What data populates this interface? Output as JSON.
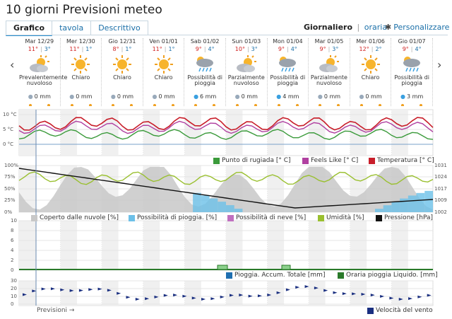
{
  "title": "10 giorni Previsioni meteo",
  "tabs": [
    {
      "label": "Grafico"
    },
    {
      "label": "tavola"
    },
    {
      "label": "Descrittivo"
    }
  ],
  "mode": {
    "current": "Giornaliero",
    "separator": "|",
    "alternative": "oraria"
  },
  "customize_label": "Personalizzare",
  "nav": {
    "prev": "‹",
    "next": "›"
  },
  "days": [
    {
      "name": "Mar 12/29",
      "max": "11°",
      "min": "3°",
      "icon": "partly-cloudy-icon",
      "condition": "Prevalentemente nuvoloso",
      "precip": "0 mm",
      "rain": false
    },
    {
      "name": "Mer 12/30",
      "max": "11°",
      "min": "1°",
      "icon": "sun-icon",
      "condition": "Chiaro",
      "precip": "0 mm",
      "rain": false
    },
    {
      "name": "Gio 12/31",
      "max": "8°",
      "min": "1°",
      "icon": "sun-icon",
      "condition": "Chiaro",
      "precip": "0 mm",
      "rain": false
    },
    {
      "name": "Ven 01/01",
      "max": "11°",
      "min": "1°",
      "icon": "sun-icon",
      "condition": "Chiaro",
      "precip": "0 mm",
      "rain": false
    },
    {
      "name": "Sab 01/02",
      "max": "9°",
      "min": "4°",
      "icon": "rain-cloud-icon",
      "condition": "Possibilità di pioggia",
      "precip": "6 mm",
      "rain": true
    },
    {
      "name": "Sun 01/03",
      "max": "10°",
      "min": "3°",
      "icon": "partly-cloudy-icon",
      "condition": "Parzialmente nuvoloso",
      "precip": "0 mm",
      "rain": false
    },
    {
      "name": "Mon 01/04",
      "max": "9°",
      "min": "4°",
      "icon": "rain-cloud-icon",
      "condition": "Possibilità di pioggia",
      "precip": "4 mm",
      "rain": true
    },
    {
      "name": "Mar 01/05",
      "max": "9°",
      "min": "3°",
      "icon": "partly-cloudy-icon",
      "condition": "Parzialmente nuvoloso",
      "precip": "0 mm",
      "rain": false
    },
    {
      "name": "Mer 01/06",
      "max": "12°",
      "min": "2°",
      "icon": "sun-icon",
      "condition": "Chiaro",
      "precip": "0 mm",
      "rain": false
    },
    {
      "name": "Gio 01/07",
      "max": "9°",
      "min": "4°",
      "icon": "rain-cloud-icon",
      "condition": "Possibilità di pioggia",
      "precip": "3 mm",
      "rain": true
    }
  ],
  "temp_chart": {
    "y_ticks": [
      "10 °C",
      "5 °C",
      "0 °C"
    ],
    "legend": [
      {
        "label": "Punto di rugiada [° C]",
        "color": "#3a9a3a"
      },
      {
        "label": "Feels Like [° C]",
        "color": "#b040a0"
      },
      {
        "label": "Temperatura [° C]",
        "color": "#c81e2a"
      }
    ]
  },
  "pct_chart": {
    "y_ticks_left": [
      "100%",
      "75%",
      "50%",
      "25%",
      "0%"
    ],
    "y_ticks_right": [
      "1031",
      "1024",
      "1017",
      "1009",
      "1002"
    ],
    "legend": [
      {
        "label": "Coperto dalle nuvole [%]",
        "color": "#c8c8c8"
      },
      {
        "label": "Possibilità di pioggia. [%]",
        "color": "#6cc0e8"
      },
      {
        "label": "Possibilità di neve [%]",
        "color": "#c070c0"
      },
      {
        "label": "Umidità [%]",
        "color": "#9ac030"
      },
      {
        "label": "Pressione [hPa]",
        "color": "#111111"
      }
    ]
  },
  "rain_chart": {
    "y_ticks": [
      "10",
      "8",
      "6",
      "4",
      "2",
      "0"
    ],
    "legend": [
      {
        "label": "Pioggia. Accum. Totale [mm]",
        "color": "#1f6fb0"
      },
      {
        "label": "Oraria pioggia Liquido. [mm]",
        "color": "#2a7a2a"
      }
    ]
  },
  "wind_chart": {
    "y_ticks": [
      "30",
      "20",
      "10",
      "0"
    ],
    "legend": [
      {
        "label": "Velocità del vento",
        "color": "#1a2f80"
      }
    ]
  },
  "past_label": "Previsioni →"
}
